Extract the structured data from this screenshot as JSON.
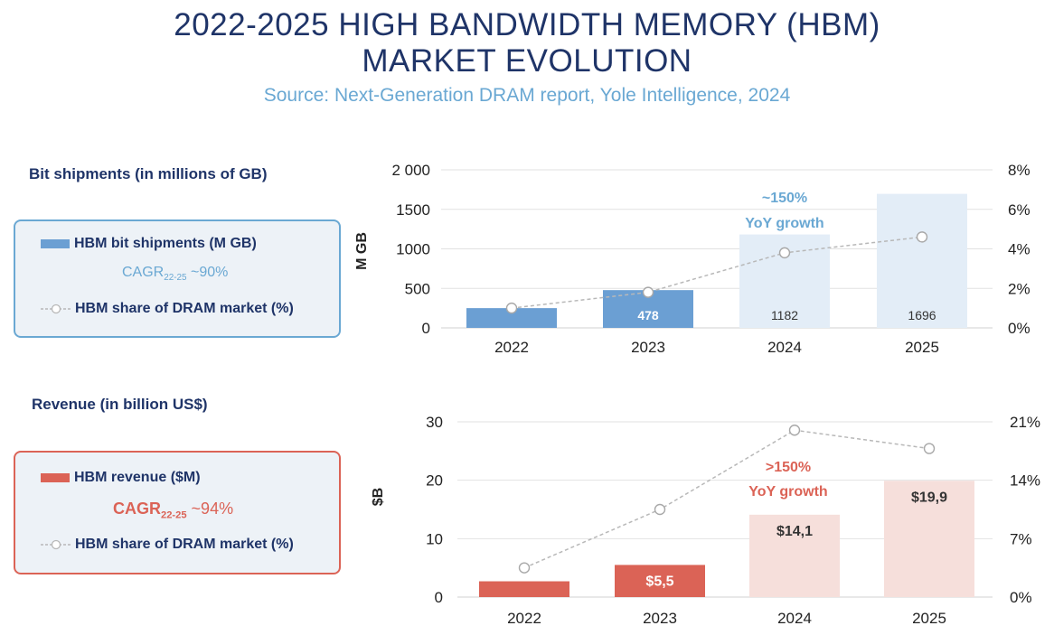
{
  "title": {
    "line1": "2022-2025 HIGH BANDWIDTH MEMORY (HBM)",
    "line2": "MARKET EVOLUTION"
  },
  "subtitle": "Source: Next-Generation DRAM report, Yole Intelligence, 2024",
  "sections": {
    "bits": {
      "label": "Bit shipments (in millions of GB)",
      "legend_bar": "HBM bit shipments (M GB)",
      "cagr_prefix": "CAGR",
      "cagr_sub": "22-25",
      "cagr_value": " ~90%",
      "legend_line": "HBM share of DRAM market (%)"
    },
    "revenue": {
      "label": "Revenue (in billion US$)",
      "legend_bar": "HBM revenue ($M)",
      "cagr_prefix": "CAGR",
      "cagr_sub": "22-25",
      "cagr_value": " ~94%",
      "legend_line": "HBM share of DRAM market (%)"
    }
  },
  "colors": {
    "title": "#1f3468",
    "blue": "#6b9fd3",
    "blue_light": "#e3edf7",
    "red": "#db6356",
    "red_light": "#f6dfdb",
    "line": "#b8b8b8",
    "grid": "#e2e2e2"
  },
  "chart_data": [
    {
      "type": "bar",
      "title": "Bit shipments (in millions of GB)",
      "categories": [
        "2022",
        "2023",
        "2024",
        "2025"
      ],
      "ylabel": "M GB",
      "ylim": [
        0,
        2000
      ],
      "yticks": [
        "0",
        "500",
        "1000",
        "1500",
        "2 000"
      ],
      "y2lim": [
        0,
        8
      ],
      "y2ticks": [
        "0%",
        "2%",
        "4%",
        "6%",
        "8%"
      ],
      "series": [
        {
          "name": "HBM bit shipments (M GB)",
          "kind": "bar",
          "values": [
            250,
            478,
            1182,
            1696
          ],
          "labels": [
            "",
            "478",
            "1182",
            "1696"
          ]
        },
        {
          "name": "HBM share of DRAM market (%)",
          "kind": "line",
          "axis": "secondary",
          "values": [
            1.0,
            1.8,
            3.8,
            4.6
          ]
        }
      ],
      "annotation": {
        "line1": "~150%",
        "line2": "YoY growth"
      },
      "grid": true
    },
    {
      "type": "bar",
      "title": "Revenue (in billion US$)",
      "categories": [
        "2022",
        "2023",
        "2024",
        "2025"
      ],
      "ylabel": "$B",
      "ylim": [
        0,
        30
      ],
      "yticks": [
        "0",
        "10",
        "20",
        "30"
      ],
      "y2lim": [
        0,
        21
      ],
      "y2ticks": [
        "0%",
        "7%",
        "14%",
        "21%"
      ],
      "series": [
        {
          "name": "HBM revenue ($M)",
          "kind": "bar",
          "values": [
            2.7,
            5.5,
            14.1,
            19.9
          ],
          "labels": [
            "",
            "$5,5",
            "$14,1",
            "$19,9"
          ]
        },
        {
          "name": "HBM share of DRAM market (%)",
          "kind": "line",
          "axis": "secondary",
          "values": [
            3.5,
            10.5,
            20.0,
            17.8
          ]
        }
      ],
      "annotation": {
        "line1": ">150%",
        "line2": "YoY growth"
      },
      "grid": true
    }
  ]
}
